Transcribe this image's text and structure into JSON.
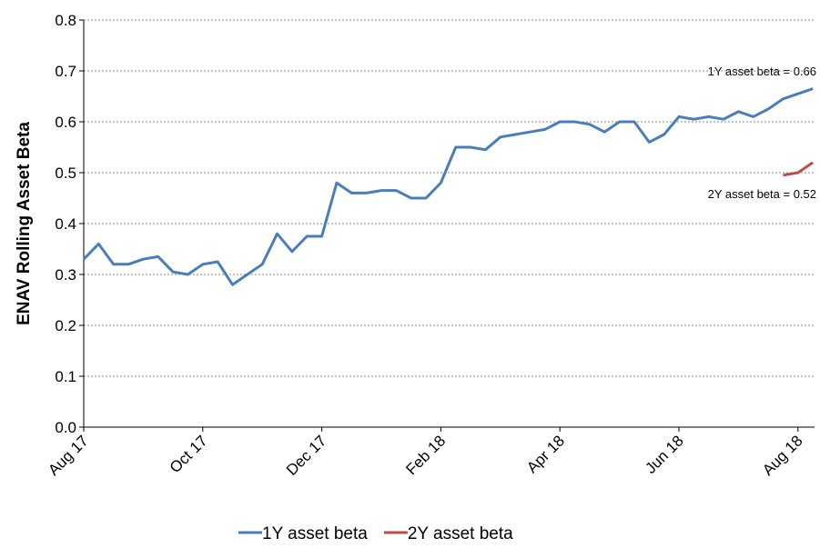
{
  "chart_data": {
    "type": "line",
    "y_label": "ENAV Rolling Asset Beta",
    "categories": [
      "Aug 17",
      null,
      null,
      null,
      null,
      null,
      null,
      null,
      "Oct 17",
      null,
      null,
      null,
      null,
      null,
      null,
      null,
      "Dec 17",
      null,
      null,
      null,
      null,
      null,
      null,
      null,
      "Feb 18",
      null,
      null,
      null,
      null,
      null,
      null,
      null,
      "Apr 18",
      null,
      null,
      null,
      null,
      null,
      null,
      null,
      "Jun 18",
      null,
      null,
      null,
      null,
      null,
      null,
      null,
      "Aug 18",
      null
    ],
    "series": [
      {
        "name": "1Y asset beta",
        "color": "#4a7ebb",
        "values": [
          0.33,
          0.36,
          0.32,
          0.32,
          0.33,
          0.335,
          0.305,
          0.3,
          0.32,
          0.325,
          0.28,
          0.3,
          0.32,
          0.38,
          0.345,
          0.375,
          0.375,
          0.48,
          0.46,
          0.46,
          0.465,
          0.465,
          0.45,
          0.45,
          0.48,
          0.55,
          0.55,
          0.545,
          0.57,
          0.575,
          0.58,
          0.585,
          0.6,
          0.6,
          0.595,
          0.58,
          0.6,
          0.6,
          0.56,
          0.575,
          0.61,
          0.605,
          0.61,
          0.605,
          0.62,
          0.61,
          0.625,
          0.645,
          0.655,
          0.665
        ]
      },
      {
        "name": "2Y asset beta",
        "color": "#be4b48",
        "values": [
          null,
          null,
          null,
          null,
          null,
          null,
          null,
          null,
          null,
          null,
          null,
          null,
          null,
          null,
          null,
          null,
          null,
          null,
          null,
          null,
          null,
          null,
          null,
          null,
          null,
          null,
          null,
          null,
          null,
          null,
          null,
          null,
          null,
          null,
          null,
          null,
          null,
          null,
          null,
          null,
          null,
          null,
          null,
          null,
          null,
          null,
          null,
          0.495,
          0.5,
          0.52
        ]
      }
    ],
    "annotations": [
      "1Y asset beta = 0.66",
      "2Y asset beta = 0.52"
    ],
    "ylim": [
      0,
      0.8
    ],
    "yticks": [
      {
        "value": 0,
        "label": "0.0"
      },
      0.1,
      0.2,
      0.3,
      0.4,
      0.5,
      0.6,
      0.7,
      0.8
    ],
    "grid": true,
    "legend": "bottom"
  }
}
